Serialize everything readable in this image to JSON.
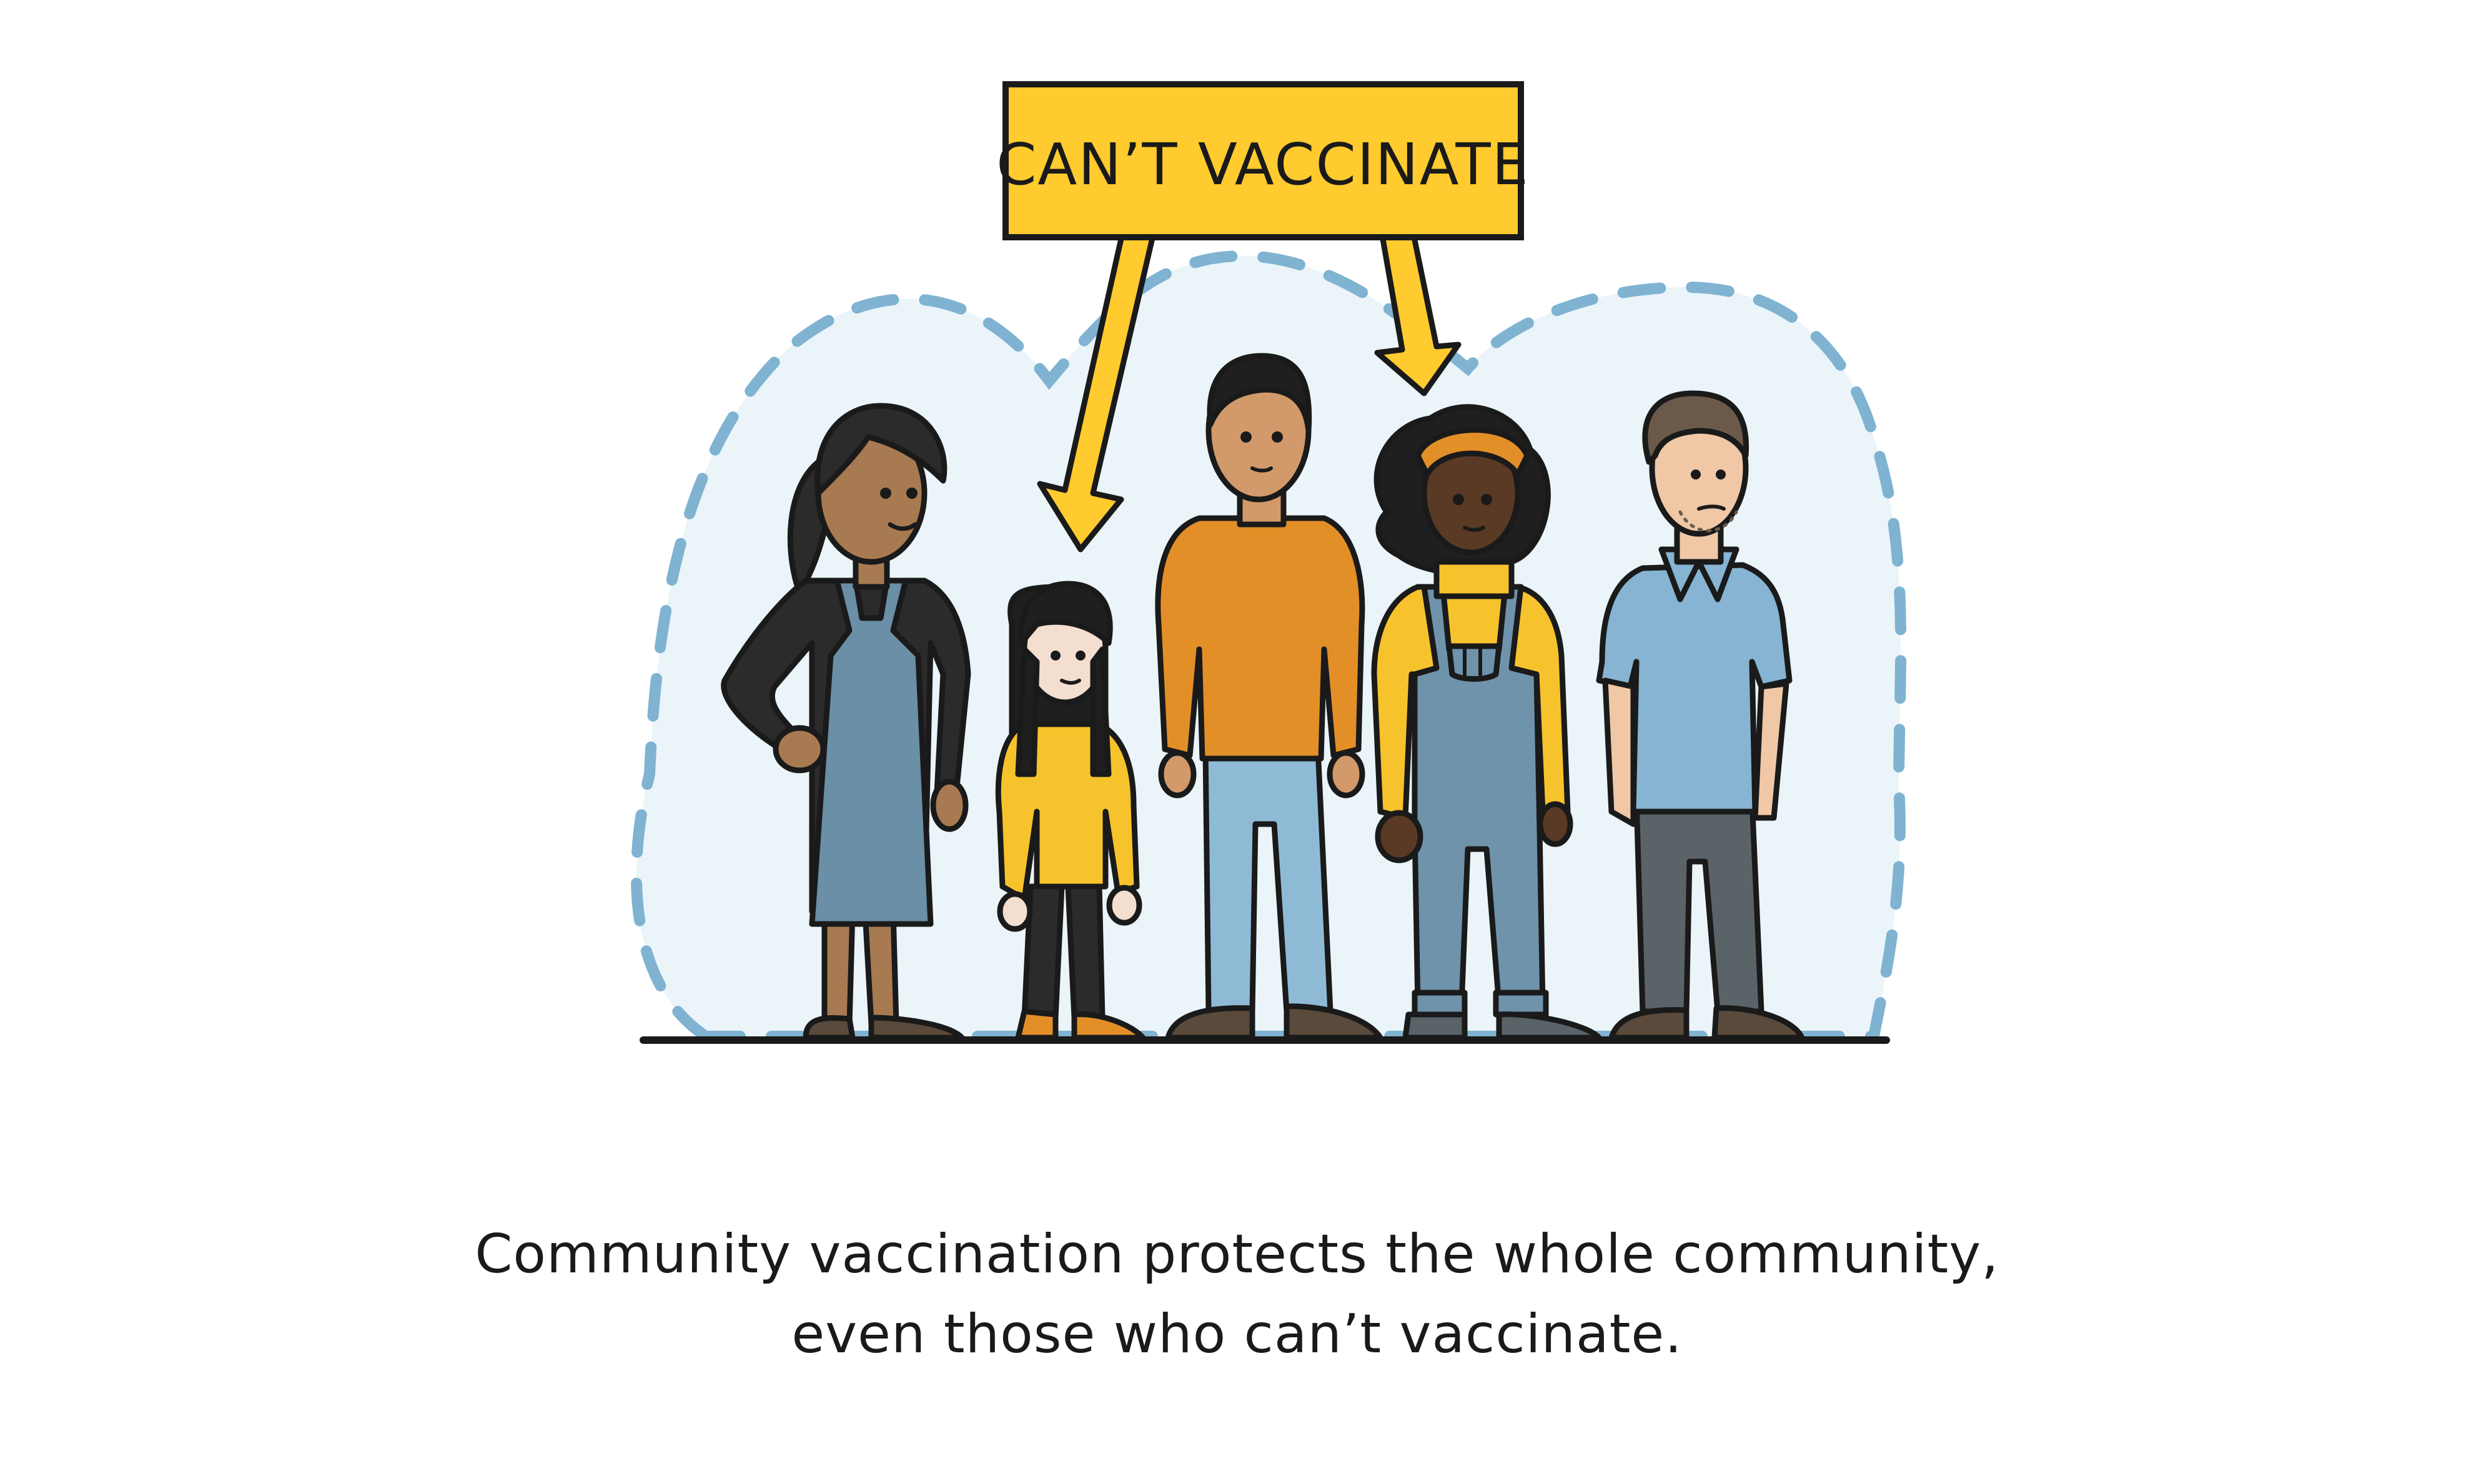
{
  "label": {
    "text": "CAN’T VACCINATE"
  },
  "caption": {
    "line1": "Community vaccination protects the whole community,",
    "line2": "even those who can’t vaccinate."
  },
  "colors": {
    "halo_fill": "#eaf4f9",
    "halo_dash": "#7fb3d1",
    "label_bg": "#ffcb2e",
    "outline": "#1a1a1a",
    "apron": "#6a8fa6",
    "orange_shirt": "#e38f28",
    "yellow_shirt": "#f7c32c",
    "jeans": "#8fbad6",
    "overalls": "#6f93ab",
    "blue_shirt": "#86b4d2",
    "grey_pants": "#5a6368"
  },
  "people": [
    {
      "name": "woman-apron"
    },
    {
      "name": "girl-yellow-sweater"
    },
    {
      "name": "man-orange-sweater"
    },
    {
      "name": "woman-overalls"
    },
    {
      "name": "man-blue-shirt"
    }
  ]
}
